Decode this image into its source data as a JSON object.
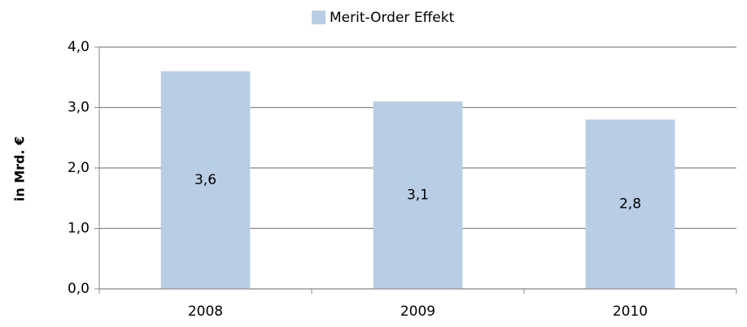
{
  "chart_data": {
    "type": "bar",
    "y_label": "in Mrd. €",
    "categories": [
      "2008",
      "2009",
      "2010"
    ],
    "series": [
      {
        "name": "Merit-Order Effekt",
        "color": "#b9cde5",
        "values": [
          3.6,
          3.1,
          2.8
        ],
        "value_labels": [
          "3,6",
          "3,1",
          "2,8"
        ]
      }
    ],
    "ylim": [
      0,
      4
    ],
    "yticks": [
      {
        "value": 0,
        "label": "0,0"
      },
      {
        "value": 1,
        "label": "1,0"
      },
      {
        "value": 2,
        "label": "2,0"
      },
      {
        "value": 3,
        "label": "3,0"
      },
      {
        "value": 4,
        "label": "4,0"
      }
    ],
    "grid": true,
    "legend": "top"
  }
}
